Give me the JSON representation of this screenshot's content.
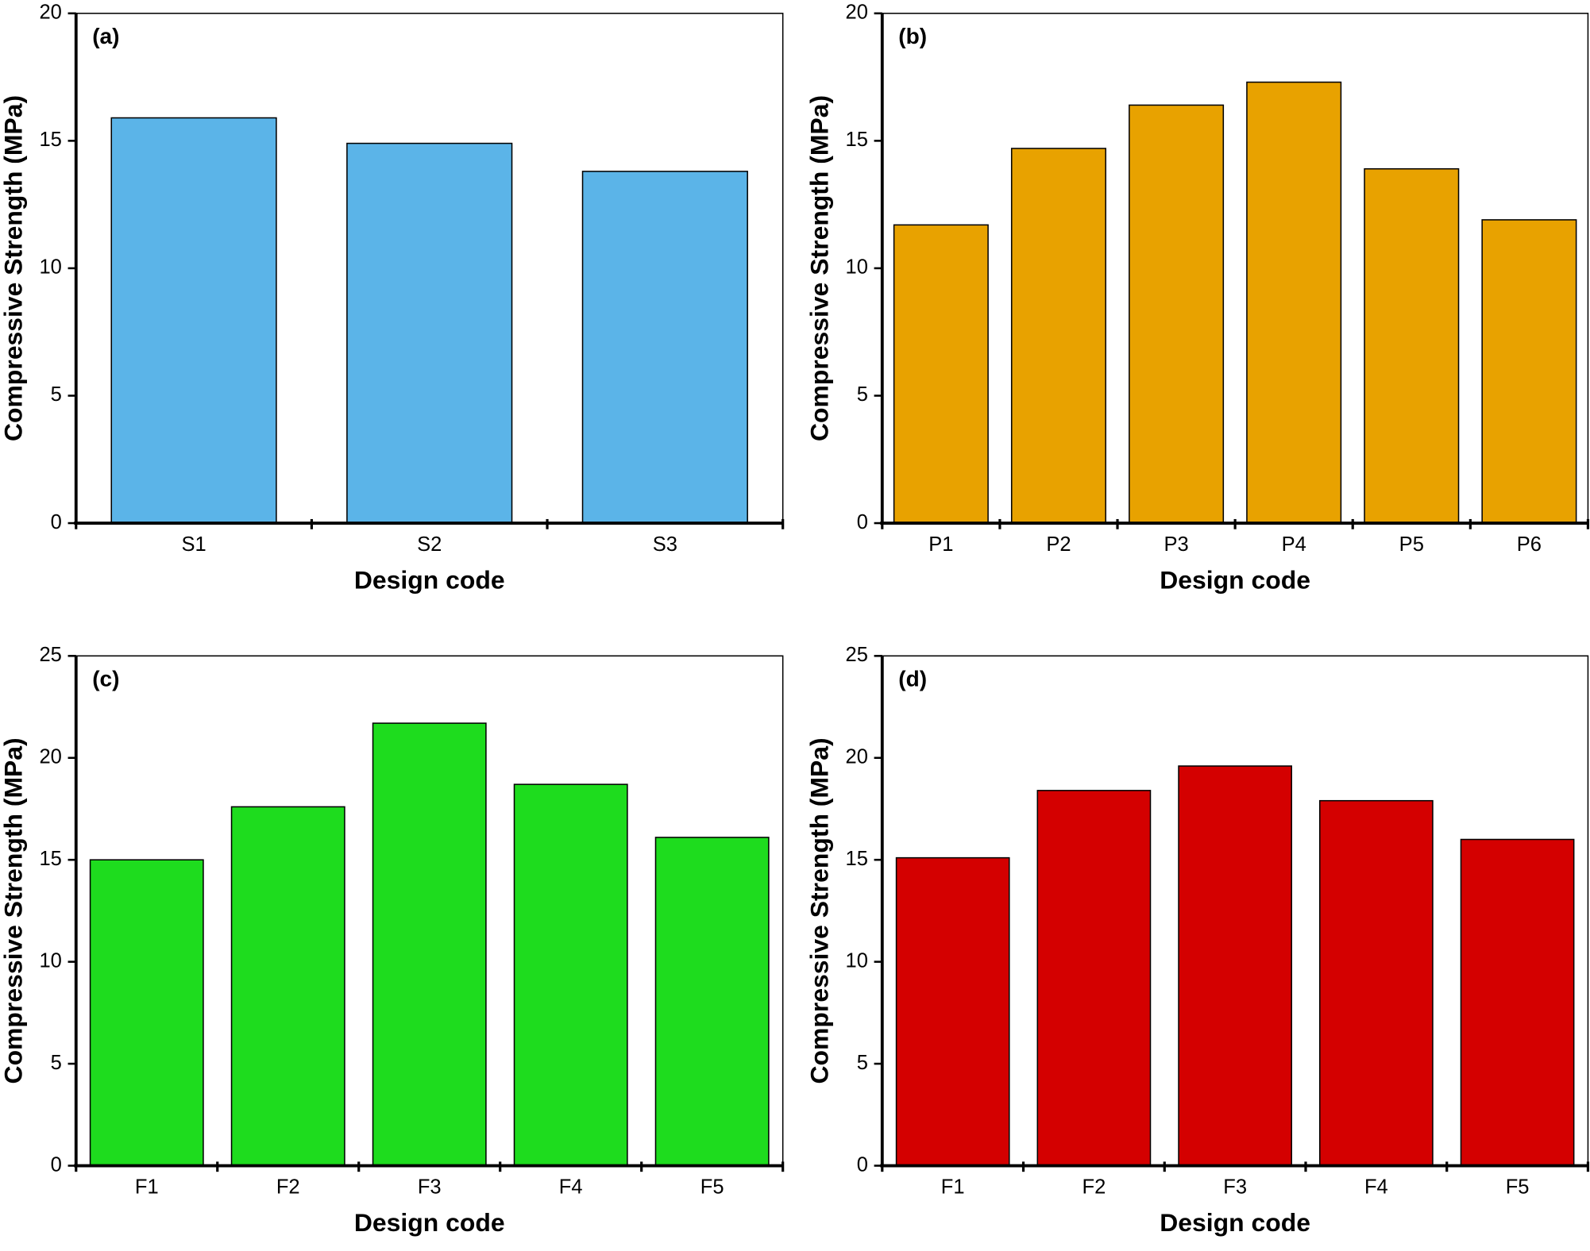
{
  "chart_data": [
    {
      "type": "bar",
      "annotation": "(a)",
      "y_label": "Compressive Strength (MPa)",
      "x_label": "Design code",
      "categories": [
        "S1",
        "S2",
        "S3"
      ],
      "values": [
        15.9,
        14.9,
        13.8
      ],
      "color": "#5bb4e8",
      "ylim": [
        0,
        20
      ],
      "yticks": [
        0,
        5,
        10,
        15,
        20
      ]
    },
    {
      "type": "bar",
      "annotation": "(b)",
      "y_label": "Compressive Strength (MPa)",
      "x_label": "Design code",
      "categories": [
        "P1",
        "P2",
        "P3",
        "P4",
        "P5",
        "P6"
      ],
      "values": [
        11.7,
        14.7,
        16.4,
        17.3,
        13.9,
        11.9
      ],
      "color": "#e8a200",
      "ylim": [
        0,
        20
      ],
      "yticks": [
        0,
        5,
        10,
        15,
        20
      ]
    },
    {
      "type": "bar",
      "annotation": "(c)",
      "y_label": "Compressive Strength (MPa)",
      "x_label": "Design code",
      "categories": [
        "F1",
        "F2",
        "F3",
        "F4",
        "F5"
      ],
      "values": [
        15.0,
        17.6,
        21.7,
        18.7,
        16.1
      ],
      "color": "#1edc1e",
      "ylim": [
        0,
        25
      ],
      "yticks": [
        0,
        5,
        10,
        15,
        20,
        25
      ]
    },
    {
      "type": "bar",
      "annotation": "(d)",
      "y_label": "Compressive Strength (MPa)",
      "x_label": "Design code",
      "categories": [
        "F1",
        "F2",
        "F3",
        "F4",
        "F5"
      ],
      "values": [
        15.1,
        18.4,
        19.6,
        17.9,
        16.0
      ],
      "color": "#d40000",
      "ylim": [
        0,
        25
      ],
      "yticks": [
        0,
        5,
        10,
        15,
        20,
        25
      ]
    }
  ]
}
